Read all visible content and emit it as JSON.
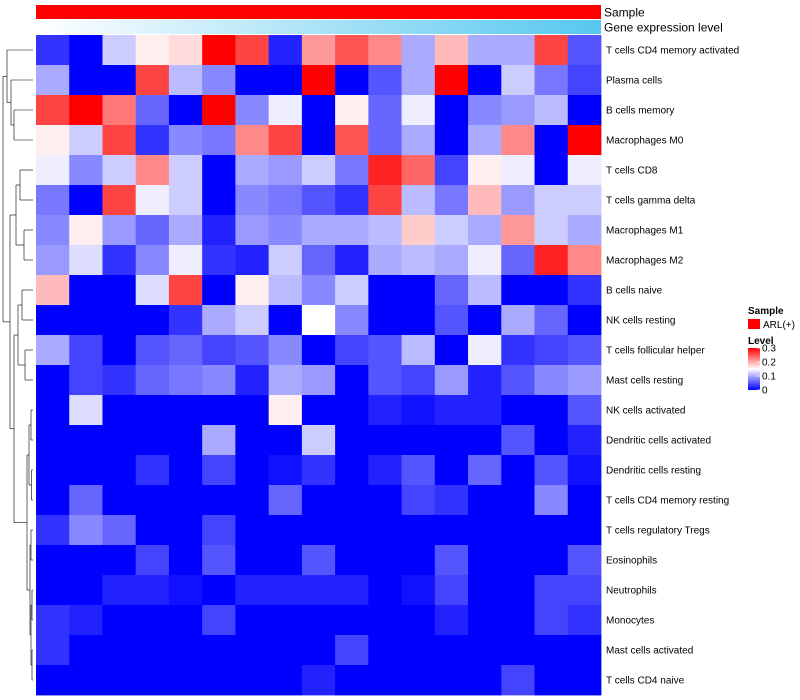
{
  "chart_data": {
    "type": "heatmap",
    "title": "",
    "annotation_tracks": [
      {
        "name": "Sample",
        "color_from": "#ff0000",
        "color_to": "#ff0000"
      },
      {
        "name": "Gene expression level",
        "color_from": "#ffffff",
        "color_to": "#56c7ef"
      }
    ],
    "rows": [
      "T cells CD4 memory activated",
      "Plasma cells",
      "B cells memory",
      "Macrophages M0",
      "T cells CD8",
      "T cells gamma delta",
      "Macrophages M1",
      "Macrophages M2",
      "B cells naive",
      "NK cells resting",
      "T cells follicular helper",
      "Mast cells resting",
      "NK cells activated",
      "Dendritic cells activated",
      "Dendritic cells resting",
      "T cells CD4 memory resting",
      "T cells regulatory  Tregs",
      "Eosinophils",
      "Neutrophils",
      "Monocytes",
      "Mast cells activated",
      "T cells CD4 naive"
    ],
    "n_columns": 17,
    "values": [
      [
        0.03,
        0.0,
        0.12,
        0.16,
        0.17,
        0.3,
        0.26,
        0.02,
        0.21,
        0.25,
        0.22,
        0.1,
        0.19,
        0.1,
        0.1,
        0.26,
        0.05
      ],
      [
        0.1,
        0.0,
        0.0,
        0.26,
        0.11,
        0.08,
        0.0,
        0.0,
        0.3,
        0.0,
        0.05,
        0.1,
        0.3,
        0.0,
        0.12,
        0.07,
        0.04
      ],
      [
        0.26,
        0.3,
        0.23,
        0.06,
        0.0,
        0.3,
        0.08,
        0.14,
        0.0,
        0.16,
        0.06,
        0.14,
        0.0,
        0.08,
        0.09,
        0.11,
        0.0
      ],
      [
        0.16,
        0.12,
        0.26,
        0.03,
        0.08,
        0.07,
        0.22,
        0.26,
        0.0,
        0.25,
        0.06,
        0.1,
        0.0,
        0.1,
        0.22,
        0.0,
        0.3
      ],
      [
        0.14,
        0.08,
        0.12,
        0.22,
        0.12,
        0.0,
        0.1,
        0.09,
        0.12,
        0.07,
        0.28,
        0.24,
        0.04,
        0.16,
        0.14,
        0.0,
        0.14
      ],
      [
        0.07,
        0.0,
        0.26,
        0.14,
        0.12,
        0.0,
        0.08,
        0.07,
        0.05,
        0.03,
        0.26,
        0.11,
        0.07,
        0.19,
        0.09,
        0.12,
        0.12
      ],
      [
        0.08,
        0.16,
        0.09,
        0.06,
        0.1,
        0.02,
        0.09,
        0.08,
        0.1,
        0.1,
        0.11,
        0.18,
        0.12,
        0.1,
        0.21,
        0.12,
        0.1
      ],
      [
        0.09,
        0.13,
        0.03,
        0.08,
        0.14,
        0.03,
        0.02,
        0.12,
        0.06,
        0.02,
        0.1,
        0.11,
        0.1,
        0.14,
        0.06,
        0.28,
        0.22
      ],
      [
        0.19,
        0.0,
        0.0,
        0.13,
        0.26,
        0.0,
        0.16,
        0.11,
        0.08,
        0.12,
        0.0,
        0.0,
        0.06,
        0.11,
        0.0,
        0.0,
        0.03
      ],
      [
        0.0,
        0.0,
        0.0,
        0.0,
        0.03,
        0.1,
        0.12,
        0.0,
        0.15,
        0.08,
        0.0,
        0.0,
        0.05,
        0.0,
        0.1,
        0.06,
        0.0
      ],
      [
        0.1,
        0.04,
        0.0,
        0.05,
        0.06,
        0.04,
        0.05,
        0.08,
        0.0,
        0.04,
        0.05,
        0.11,
        0.0,
        0.14,
        0.03,
        0.04,
        0.05
      ],
      [
        0.0,
        0.04,
        0.03,
        0.06,
        0.07,
        0.08,
        0.02,
        0.1,
        0.09,
        0.0,
        0.05,
        0.04,
        0.09,
        0.02,
        0.05,
        0.08,
        0.09
      ],
      [
        0.0,
        0.13,
        0.0,
        0.0,
        0.0,
        0.0,
        0.0,
        0.16,
        0.0,
        0.0,
        0.02,
        0.01,
        0.02,
        0.02,
        0.0,
        0.0,
        0.05
      ],
      [
        0.0,
        0.0,
        0.0,
        0.0,
        0.0,
        0.1,
        0.0,
        0.0,
        0.12,
        0.0,
        0.0,
        0.0,
        0.0,
        0.0,
        0.05,
        0.0,
        0.02
      ],
      [
        0.0,
        0.0,
        0.0,
        0.03,
        0.0,
        0.04,
        0.0,
        0.01,
        0.03,
        0.0,
        0.02,
        0.05,
        0.0,
        0.06,
        0.0,
        0.05,
        0.01
      ],
      [
        0.0,
        0.06,
        0.0,
        0.0,
        0.0,
        0.0,
        0.0,
        0.06,
        0.0,
        0.0,
        0.0,
        0.04,
        0.03,
        0.0,
        0.0,
        0.08,
        0.0
      ],
      [
        0.03,
        0.08,
        0.06,
        0.0,
        0.0,
        0.04,
        0.0,
        0.0,
        0.0,
        0.0,
        0.0,
        0.0,
        0.0,
        0.0,
        0.0,
        0.0,
        0.0
      ],
      [
        0.0,
        0.0,
        0.0,
        0.04,
        0.0,
        0.05,
        0.0,
        0.0,
        0.05,
        0.0,
        0.0,
        0.0,
        0.05,
        0.0,
        0.0,
        0.0,
        0.05
      ],
      [
        0.0,
        0.0,
        0.02,
        0.02,
        0.01,
        0.0,
        0.02,
        0.02,
        0.02,
        0.02,
        0.0,
        0.01,
        0.04,
        0.0,
        0.0,
        0.04,
        0.04
      ],
      [
        0.03,
        0.02,
        0.0,
        0.0,
        0.0,
        0.04,
        0.0,
        0.0,
        0.0,
        0.0,
        0.0,
        0.0,
        0.02,
        0.0,
        0.0,
        0.04,
        0.03
      ],
      [
        0.03,
        0.0,
        0.0,
        0.0,
        0.0,
        0.0,
        0.0,
        0.0,
        0.0,
        0.04,
        0.0,
        0.0,
        0.0,
        0.0,
        0.0,
        0.0,
        0.0
      ],
      [
        0.0,
        0.0,
        0.0,
        0.0,
        0.0,
        0.0,
        0.0,
        0.0,
        0.02,
        0.0,
        0.0,
        0.0,
        0.0,
        0.0,
        0.04,
        0.0,
        0.0
      ]
    ],
    "color_scale": {
      "low": "#0000ff",
      "mid": "#ffffff",
      "high": "#ff0000",
      "min": 0,
      "mid_value": 0.15,
      "max": 0.3
    },
    "legend": {
      "sample_title": "Sample",
      "sample_entry": "ARL(+)",
      "sample_color": "#ff0000",
      "level_title": "Level",
      "level_ticks": [
        {
          "label": "0.3",
          "value": 0.3
        },
        {
          "label": "0.2",
          "value": 0.2
        },
        {
          "label": "0.1",
          "value": 0.1
        },
        {
          "label": "0",
          "value": 0.0
        }
      ],
      "position": "right"
    },
    "row_dendrogram": {
      "side": "left",
      "leaves": 22
    }
  }
}
